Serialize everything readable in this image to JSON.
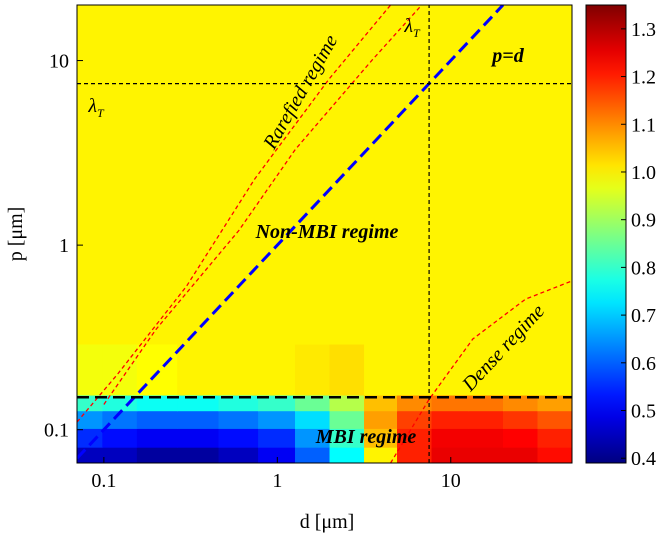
{
  "chart_data": {
    "type": "heatmap",
    "xlabel": "d [μm]",
    "ylabel": "p [μm]",
    "xscale": "log",
    "yscale": "log",
    "xlim": [
      0.07,
      50
    ],
    "ylim": [
      0.066,
      20
    ],
    "xticks": [
      0.1,
      1,
      10
    ],
    "yticks": [
      0.1,
      1,
      10
    ],
    "x": [
      0.08,
      0.12,
      0.2,
      0.35,
      0.6,
      1,
      1.6,
      2.5,
      4,
      6,
      10,
      16,
      25,
      40
    ],
    "y": [
      0.072,
      0.09,
      0.115,
      0.14,
      0.17,
      0.5,
      5
    ],
    "z": [
      [
        0.45,
        0.45,
        0.42,
        0.42,
        0.45,
        0.5,
        0.6,
        0.75,
        1.0,
        1.2,
        1.25,
        1.25,
        1.25,
        1.22
      ],
      [
        0.55,
        0.52,
        0.5,
        0.5,
        0.52,
        0.55,
        0.65,
        0.8,
        1.05,
        1.2,
        1.24,
        1.24,
        1.23,
        1.2
      ],
      [
        0.65,
        0.62,
        0.6,
        0.6,
        0.62,
        0.65,
        0.72,
        0.85,
        1.08,
        1.17,
        1.2,
        1.2,
        1.18,
        1.15
      ],
      [
        0.8,
        0.78,
        0.76,
        0.76,
        0.78,
        0.8,
        0.85,
        0.92,
        1.05,
        1.1,
        1.12,
        1.12,
        1.1,
        1.08
      ],
      [
        0.98,
        0.98,
        0.99,
        1.0,
        1.0,
        1.0,
        1.01,
        1.02,
        1.0,
        1.0,
        1.0,
        1.0,
        1.0,
        1.0
      ],
      [
        1.0,
        1.0,
        1.0,
        1.0,
        1.0,
        1.0,
        1.0,
        1.0,
        1.0,
        1.0,
        1.0,
        1.0,
        1.0,
        1.0
      ],
      [
        1.0,
        1.0,
        1.0,
        1.0,
        1.0,
        1.0,
        1.0,
        1.0,
        1.0,
        1.0,
        1.0,
        1.0,
        1.0,
        1.0
      ]
    ],
    "colormap": "jet",
    "clim": [
      0.39,
      1.35
    ],
    "cticks": [
      0.4,
      0.5,
      0.6,
      0.7,
      0.8,
      0.9,
      {
        "value": 1,
        "label": "1.0"
      },
      1.1,
      1.2,
      1.3
    ],
    "lines": [
      {
        "color": "#ff0000",
        "dash": "4 3",
        "width": 1.3,
        "x": [
          0.07,
          0.12,
          0.3,
          0.74,
          2,
          4.5
        ],
        "y": [
          0.11,
          0.2,
          0.6,
          2.28,
          8,
          20
        ]
      },
      {
        "color": "#ff0000",
        "dash": "4 3",
        "width": 1.3,
        "x": [
          0.1,
          0.2,
          0.6,
          1.27,
          3.5,
          6.8
        ],
        "y": [
          0.137,
          0.35,
          1.2,
          3.3,
          10,
          20
        ]
      },
      {
        "color": "#ff0000",
        "dash": "4 3",
        "width": 1.3,
        "x": [
          4.5,
          7.5,
          13.4,
          27,
          50
        ],
        "y": [
          0.066,
          0.146,
          0.31,
          0.51,
          0.64
        ]
      },
      {
        "color": "#0000ff",
        "dash": "12 6",
        "width": 3,
        "x": [
          0.07,
          20
        ],
        "y": [
          0.07,
          20
        ]
      },
      {
        "color": "#000000",
        "dash": "12 6",
        "width": 2.5,
        "x": [
          0.07,
          50
        ],
        "y": [
          0.15,
          0.15
        ]
      },
      {
        "color": "#000000",
        "dash": "4 3",
        "width": 1.2,
        "x": [
          0.07,
          50
        ],
        "y": [
          7.5,
          7.5
        ]
      },
      {
        "color": "#000000",
        "dash": "4 3",
        "width": 1.2,
        "x": [
          7.5,
          7.5
        ],
        "y": [
          0.066,
          20
        ]
      }
    ],
    "annotations": [
      {
        "text": "Non-MBI regime"
      },
      {
        "text": "MBI regime"
      },
      {
        "text": "p=d"
      },
      {
        "text": "Rarefied regime"
      },
      {
        "text": "Dense regime"
      },
      {
        "text": "λ",
        "sub": "T"
      },
      {
        "text": "λ",
        "sub": "T"
      }
    ]
  }
}
